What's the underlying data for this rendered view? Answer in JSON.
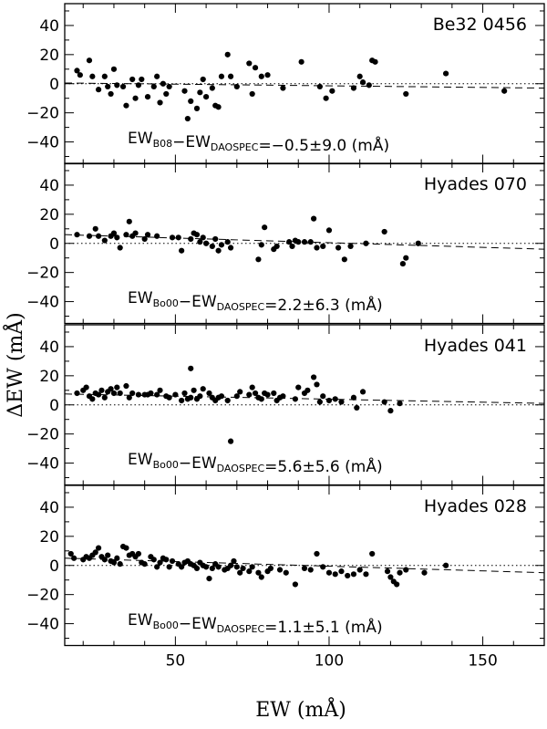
{
  "chart_data": {
    "type": "scatter",
    "xlabel": "EW  (mÅ)",
    "ylabel": "ΔEW  (mÅ)",
    "xlim": [
      14,
      170
    ],
    "x_ticks": [
      50,
      100,
      150
    ],
    "ylim": [
      -55,
      55
    ],
    "y_ticks": [
      -40,
      -20,
      0,
      20,
      40
    ],
    "panels": [
      {
        "label": "Be32 0456",
        "annotation": {
          "a": "EW",
          "a_sub": "B08",
          "b": "EW",
          "b_sub": "DAOSPEC",
          "result": "=−0.5±9.0  (mÅ)"
        },
        "fit": {
          "y_at_xmin": 0.5,
          "y_at_xmax": -3.0
        },
        "points": [
          [
            18,
            9
          ],
          [
            19,
            6
          ],
          [
            22,
            16
          ],
          [
            23,
            5
          ],
          [
            25,
            -4
          ],
          [
            27,
            5
          ],
          [
            28,
            -2
          ],
          [
            29,
            -7
          ],
          [
            30,
            10
          ],
          [
            31,
            -1
          ],
          [
            33,
            -2
          ],
          [
            34,
            -15
          ],
          [
            36,
            3
          ],
          [
            37,
            -10
          ],
          [
            38,
            -1
          ],
          [
            39,
            3
          ],
          [
            41,
            -9
          ],
          [
            43,
            -2
          ],
          [
            44,
            5
          ],
          [
            45,
            -13
          ],
          [
            46,
            0
          ],
          [
            47,
            -7
          ],
          [
            48,
            -2
          ],
          [
            53,
            -5
          ],
          [
            54,
            -24
          ],
          [
            55,
            -12
          ],
          [
            57,
            -17
          ],
          [
            58,
            -6
          ],
          [
            59,
            3
          ],
          [
            60,
            -9
          ],
          [
            62,
            -3
          ],
          [
            63,
            -15
          ],
          [
            64,
            -16
          ],
          [
            65,
            5
          ],
          [
            67,
            20
          ],
          [
            68,
            5
          ],
          [
            70,
            -2
          ],
          [
            74,
            14
          ],
          [
            75,
            -7
          ],
          [
            76,
            11
          ],
          [
            78,
            5
          ],
          [
            80,
            6
          ],
          [
            85,
            -3
          ],
          [
            91,
            15
          ],
          [
            97,
            -2
          ],
          [
            99,
            -10
          ],
          [
            101,
            -5
          ],
          [
            108,
            -3
          ],
          [
            110,
            5
          ],
          [
            111,
            1
          ],
          [
            113,
            -1
          ],
          [
            114,
            16
          ],
          [
            115,
            15
          ],
          [
            125,
            -7
          ],
          [
            138,
            7
          ],
          [
            157,
            -5
          ]
        ]
      },
      {
        "label": "Hyades 070",
        "annotation": {
          "a": "EW",
          "a_sub": "Bo00",
          "b": "EW",
          "b_sub": "DAOSPEC",
          "result": "=2.2±6.3  (mÅ)"
        },
        "fit": {
          "y_at_xmin": 6.0,
          "y_at_xmax": -4.0
        },
        "points": [
          [
            18,
            6
          ],
          [
            22,
            5
          ],
          [
            24,
            10
          ],
          [
            25,
            5
          ],
          [
            27,
            2
          ],
          [
            29,
            5
          ],
          [
            30,
            7
          ],
          [
            31,
            4
          ],
          [
            32,
            -3
          ],
          [
            34,
            6
          ],
          [
            35,
            15
          ],
          [
            36,
            5
          ],
          [
            37,
            7
          ],
          [
            40,
            3
          ],
          [
            41,
            6
          ],
          [
            44,
            5
          ],
          [
            49,
            4
          ],
          [
            51,
            4
          ],
          [
            52,
            -5
          ],
          [
            55,
            3
          ],
          [
            56,
            7
          ],
          [
            57,
            6
          ],
          [
            58,
            1
          ],
          [
            59,
            4
          ],
          [
            60,
            0
          ],
          [
            62,
            -2
          ],
          [
            63,
            3
          ],
          [
            64,
            -5
          ],
          [
            65,
            -1
          ],
          [
            67,
            1
          ],
          [
            68,
            -3
          ],
          [
            77,
            -11
          ],
          [
            78,
            -1
          ],
          [
            79,
            11
          ],
          [
            82,
            -4
          ],
          [
            83,
            -2
          ],
          [
            87,
            1
          ],
          [
            88,
            -2
          ],
          [
            89,
            2
          ],
          [
            90,
            1
          ],
          [
            92,
            1
          ],
          [
            94,
            1
          ],
          [
            95,
            17
          ],
          [
            96,
            -3
          ],
          [
            98,
            -2
          ],
          [
            100,
            9
          ],
          [
            103,
            -3
          ],
          [
            105,
            -11
          ],
          [
            107,
            -2
          ],
          [
            112,
            0
          ],
          [
            118,
            8
          ],
          [
            124,
            -14
          ],
          [
            125,
            -10
          ],
          [
            129,
            0
          ]
        ]
      },
      {
        "label": "Hyades 041",
        "annotation": {
          "a": "EW",
          "a_sub": "Bo00",
          "b": "EW",
          "b_sub": "DAOSPEC",
          "result": "=5.6±5.6  (mÅ)"
        },
        "fit": {
          "y_at_xmin": 7.5,
          "y_at_xmax": 1.0
        },
        "points": [
          [
            18,
            8
          ],
          [
            20,
            10
          ],
          [
            21,
            12
          ],
          [
            22,
            6
          ],
          [
            23,
            4
          ],
          [
            24,
            8
          ],
          [
            25,
            7
          ],
          [
            26,
            10
          ],
          [
            27,
            5
          ],
          [
            28,
            9
          ],
          [
            29,
            11
          ],
          [
            30,
            8
          ],
          [
            31,
            12
          ],
          [
            32,
            8
          ],
          [
            34,
            13
          ],
          [
            35,
            5
          ],
          [
            36,
            8
          ],
          [
            38,
            7
          ],
          [
            40,
            7
          ],
          [
            41,
            7
          ],
          [
            42,
            8
          ],
          [
            44,
            7
          ],
          [
            45,
            10
          ],
          [
            47,
            6
          ],
          [
            48,
            5
          ],
          [
            50,
            7
          ],
          [
            52,
            3
          ],
          [
            53,
            8
          ],
          [
            54,
            4
          ],
          [
            55,
            5
          ],
          [
            55,
            25
          ],
          [
            56,
            10
          ],
          [
            57,
            4
          ],
          [
            58,
            6
          ],
          [
            59,
            11
          ],
          [
            61,
            8
          ],
          [
            62,
            5
          ],
          [
            63,
            3
          ],
          [
            64,
            5
          ],
          [
            65,
            6
          ],
          [
            67,
            3
          ],
          [
            68,
            -25
          ],
          [
            70,
            6
          ],
          [
            71,
            9
          ],
          [
            74,
            7
          ],
          [
            75,
            12
          ],
          [
            76,
            8
          ],
          [
            77,
            5
          ],
          [
            78,
            4
          ],
          [
            79,
            8
          ],
          [
            80,
            7
          ],
          [
            82,
            8
          ],
          [
            83,
            3
          ],
          [
            84,
            5
          ],
          [
            85,
            6
          ],
          [
            89,
            4
          ],
          [
            90,
            12
          ],
          [
            92,
            8
          ],
          [
            93,
            10
          ],
          [
            95,
            19
          ],
          [
            96,
            14
          ],
          [
            97,
            2
          ],
          [
            98,
            6
          ],
          [
            100,
            3
          ],
          [
            102,
            4
          ],
          [
            104,
            2
          ],
          [
            108,
            5
          ],
          [
            109,
            -2
          ],
          [
            111,
            9
          ],
          [
            118,
            2
          ],
          [
            120,
            -4
          ],
          [
            123,
            1
          ]
        ]
      },
      {
        "label": "Hyades 028",
        "annotation": {
          "a": "EW",
          "a_sub": "Bo00",
          "b": "EW",
          "b_sub": "DAOSPEC",
          "result": "=1.1±5.1  (mÅ)"
        },
        "fit": {
          "y_at_xmin": 5.0,
          "y_at_xmax": -5.0
        },
        "points": [
          [
            16,
            8
          ],
          [
            17,
            5
          ],
          [
            20,
            4
          ],
          [
            21,
            6
          ],
          [
            22,
            5
          ],
          [
            23,
            7
          ],
          [
            24,
            9
          ],
          [
            25,
            12
          ],
          [
            26,
            6
          ],
          [
            27,
            4
          ],
          [
            28,
            7
          ],
          [
            29,
            3
          ],
          [
            30,
            2
          ],
          [
            31,
            5
          ],
          [
            32,
            1
          ],
          [
            33,
            13
          ],
          [
            34,
            12
          ],
          [
            35,
            7
          ],
          [
            36,
            8
          ],
          [
            37,
            6
          ],
          [
            38,
            8
          ],
          [
            39,
            2
          ],
          [
            40,
            1
          ],
          [
            42,
            6
          ],
          [
            43,
            4
          ],
          [
            44,
            -1
          ],
          [
            45,
            2
          ],
          [
            46,
            5
          ],
          [
            47,
            4
          ],
          [
            48,
            -1
          ],
          [
            49,
            3
          ],
          [
            51,
            1
          ],
          [
            52,
            -1
          ],
          [
            53,
            2
          ],
          [
            54,
            3
          ],
          [
            55,
            1
          ],
          [
            56,
            0
          ],
          [
            57,
            -2
          ],
          [
            58,
            2
          ],
          [
            59,
            0
          ],
          [
            60,
            -1
          ],
          [
            61,
            -9
          ],
          [
            62,
            -2
          ],
          [
            63,
            1
          ],
          [
            64,
            -1
          ],
          [
            66,
            -3
          ],
          [
            67,
            -2
          ],
          [
            68,
            0
          ],
          [
            69,
            3
          ],
          [
            70,
            -1
          ],
          [
            71,
            -5
          ],
          [
            72,
            -2
          ],
          [
            74,
            -4
          ],
          [
            75,
            -1
          ],
          [
            77,
            -5
          ],
          [
            78,
            -8
          ],
          [
            80,
            -4
          ],
          [
            81,
            -2
          ],
          [
            84,
            -3
          ],
          [
            86,
            -5
          ],
          [
            89,
            -13
          ],
          [
            92,
            -2
          ],
          [
            94,
            -3
          ],
          [
            96,
            8
          ],
          [
            98,
            -1
          ],
          [
            100,
            -5
          ],
          [
            102,
            -6
          ],
          [
            104,
            -4
          ],
          [
            106,
            -7
          ],
          [
            108,
            -6
          ],
          [
            110,
            -3
          ],
          [
            112,
            -6
          ],
          [
            114,
            8
          ],
          [
            119,
            -4
          ],
          [
            120,
            -8
          ],
          [
            121,
            -11
          ],
          [
            122,
            -13
          ],
          [
            123,
            -5
          ],
          [
            125,
            -3
          ],
          [
            131,
            -5
          ],
          [
            138,
            0
          ]
        ]
      }
    ]
  }
}
